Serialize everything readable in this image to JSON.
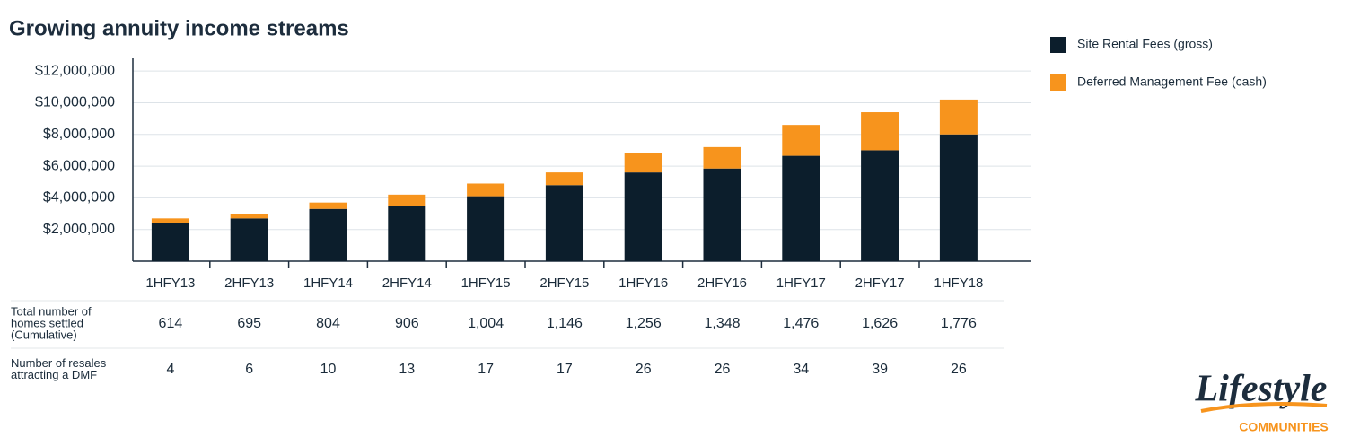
{
  "chart_data": {
    "type": "stacked_bar",
    "title": "Growing annuity income streams",
    "categories": [
      "1HFY13",
      "2HFY13",
      "1HFY14",
      "2HFY14",
      "1HFY15",
      "2HFY15",
      "1HFY16",
      "2HFY16",
      "1HFY17",
      "2HFY17",
      "1HFY18"
    ],
    "series": [
      {
        "name": "Site Rental Fees (gross)",
        "color": "#0c1e2c",
        "values": [
          2400000,
          2700000,
          3300000,
          3500000,
          4100000,
          4800000,
          5600000,
          5850000,
          6650000,
          7000000,
          8000000
        ]
      },
      {
        "name": "Deferred Management Fee (cash)",
        "color": "#f7941d",
        "values": [
          300000,
          300000,
          400000,
          700000,
          800000,
          800000,
          1200000,
          1350000,
          1950000,
          2400000,
          2200000
        ]
      }
    ],
    "ylim": [
      0,
      12800000
    ],
    "yticks": [
      {
        "value": 2000000,
        "label": "$2,000,000"
      },
      {
        "value": 4000000,
        "label": "$4,000,000"
      },
      {
        "value": 6000000,
        "label": "$6,000,000"
      },
      {
        "value": 8000000,
        "label": "$8,000,000"
      },
      {
        "value": 10000000,
        "label": "$10,000,000"
      },
      {
        "value": 12000000,
        "label": "$12,000,000"
      }
    ],
    "grid": true,
    "legend": "right"
  },
  "table": {
    "rows": [
      {
        "label": [
          "Total number of",
          "homes settled",
          "(Cumulative)"
        ],
        "values": [
          "614",
          "695",
          "804",
          "906",
          "1,004",
          "1,146",
          "1,256",
          "1,348",
          "1,476",
          "1,626",
          "1,776"
        ]
      },
      {
        "label": [
          "Number of resales",
          "attracting a DMF"
        ],
        "values": [
          "4",
          "6",
          "10",
          "13",
          "17",
          "17",
          "26",
          "26",
          "34",
          "39",
          "26"
        ]
      }
    ]
  },
  "logo": {
    "name": "Lifestyle",
    "sub": "COMMUNITIES"
  }
}
